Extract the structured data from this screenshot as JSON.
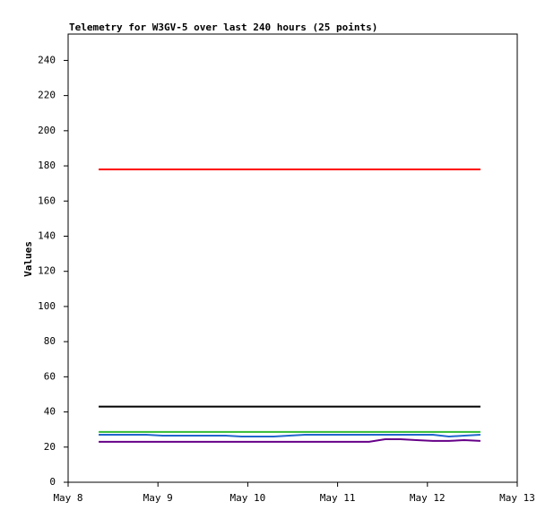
{
  "chart_data": {
    "type": "line",
    "title": "Telemetry for W3GV-5 over last 240 hours (25 points)",
    "y_label": "Values",
    "x": [
      8.34,
      8.52,
      8.69,
      8.87,
      9.05,
      9.23,
      9.4,
      9.58,
      9.76,
      9.93,
      10.11,
      10.29,
      10.46,
      10.64,
      10.82,
      11.0,
      11.17,
      11.35,
      11.53,
      11.7,
      11.88,
      12.06,
      12.24,
      12.41,
      12.59
    ],
    "series": [
      {
        "color": "#ff0000",
        "values": [
          178,
          178,
          178,
          178,
          178,
          178,
          178,
          178,
          178,
          178,
          178,
          178,
          178,
          178,
          178,
          178,
          178,
          178,
          178,
          178,
          178,
          178,
          178,
          178,
          178
        ]
      },
      {
        "color": "#000000",
        "values": [
          43,
          43,
          43,
          43,
          43,
          43,
          43,
          43,
          43,
          43,
          43,
          43,
          43,
          43,
          43,
          43,
          43,
          43,
          43,
          43,
          43,
          43,
          43,
          43,
          43
        ]
      },
      {
        "color": "#33bb33",
        "values": [
          28.6,
          28.6,
          28.6,
          28.6,
          28.6,
          28.6,
          28.6,
          28.6,
          28.6,
          28.6,
          28.6,
          28.6,
          28.6,
          28.6,
          28.6,
          28.6,
          28.6,
          28.6,
          28.6,
          28.6,
          28.6,
          28.6,
          28.6,
          28.6,
          28.6
        ]
      },
      {
        "color": "#2266cc",
        "values": [
          27,
          27,
          27,
          27,
          26.5,
          26.5,
          26.5,
          26.5,
          26.5,
          26,
          26,
          26,
          26.5,
          27,
          27,
          27,
          27,
          27,
          27,
          27,
          27,
          27,
          26,
          26.5,
          27
        ]
      },
      {
        "color": "#660088",
        "values": [
          23,
          23,
          23,
          23,
          23,
          23,
          23,
          23,
          23,
          23,
          23,
          23,
          23,
          23,
          23,
          23,
          23,
          23,
          24.5,
          24.5,
          24,
          23.5,
          23.5,
          24,
          23.5
        ]
      }
    ],
    "xlim": [
      8,
      13
    ],
    "xticks": [
      {
        "value": 8,
        "label": "May 8"
      },
      {
        "value": 9,
        "label": "May 9"
      },
      {
        "value": 10,
        "label": "May 10"
      },
      {
        "value": 11,
        "label": "May 11"
      },
      {
        "value": 12,
        "label": "May 12"
      },
      {
        "value": 13,
        "label": "May 13"
      }
    ],
    "ylim": [
      0,
      255
    ],
    "yticks": [
      0,
      20,
      40,
      60,
      80,
      100,
      120,
      140,
      160,
      180,
      200,
      220,
      240
    ],
    "grid": false
  }
}
